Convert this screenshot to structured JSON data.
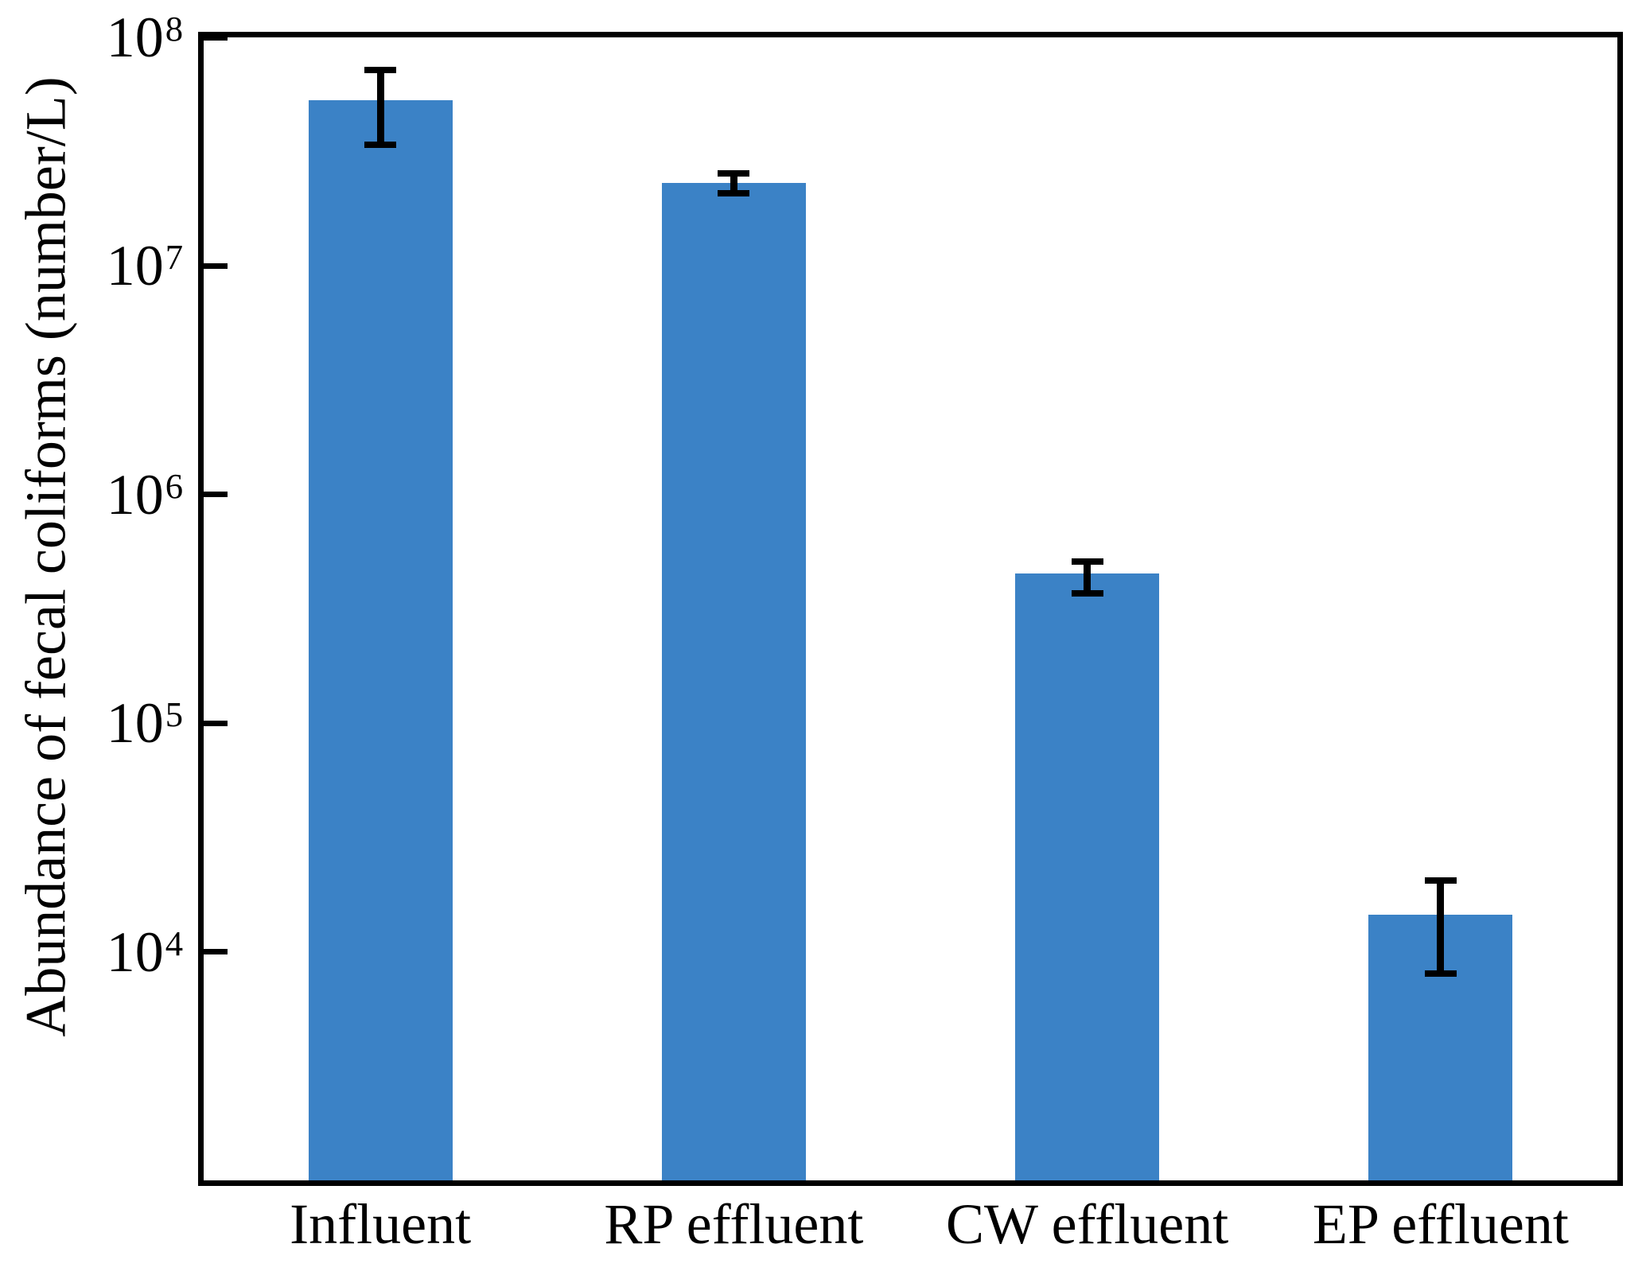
{
  "figure": {
    "background_color": "#ffffff",
    "axis_color": "#000000",
    "text_color": "#000000"
  },
  "chart_data": {
    "type": "bar",
    "title": "",
    "xlabel": "",
    "ylabel": "Abundance of fecal coliforms (number/L)",
    "categories": [
      "Influent",
      "RP effluent",
      "CW effluent",
      "EP effluent"
    ],
    "values": [
      53000000,
      23000000,
      450000,
      14500
    ],
    "error_low": [
      34000000,
      20800000,
      370000,
      8000
    ],
    "error_high": [
      72000000,
      25500000,
      510000,
      20500
    ],
    "yscale": "log",
    "ylim": [
      1000,
      100000000
    ],
    "ytick_base": "10",
    "ytick_exponents": [
      8,
      7,
      6,
      5,
      4
    ],
    "grid": false,
    "legend": null,
    "bar_color": "#3b82c6",
    "error_bar_color": "#000000"
  }
}
